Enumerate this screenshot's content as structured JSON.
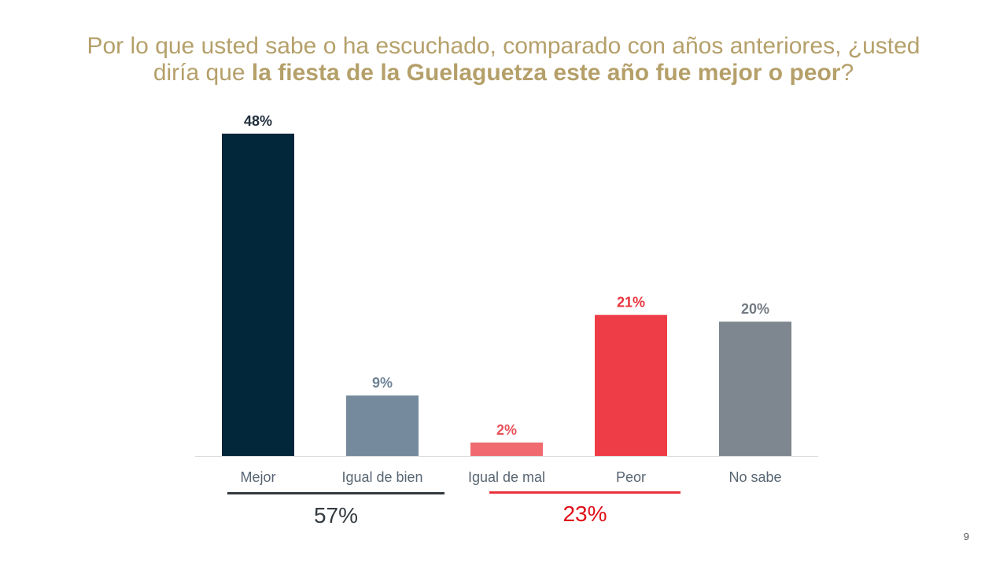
{
  "title": {
    "part1": "Por lo que usted sabe o ha escuchado, comparado con años anteriores, ¿usted",
    "part2": "diría que ",
    "bold": "la fiesta de la Guelaguetza este año fue mejor o peor",
    "part3": "?"
  },
  "chart_data": {
    "type": "bar",
    "categories": [
      "Mejor",
      "Igual de bien",
      "Igual de mal",
      "Peor",
      "No sabe"
    ],
    "values": [
      48,
      9,
      2,
      21,
      20
    ],
    "value_labels": [
      "48%",
      "9%",
      "2%",
      "21%",
      "20%"
    ],
    "bar_colors": [
      "#02263a",
      "#758a9c",
      "#ef6b6f",
      "#ef3d47",
      "#7e878f"
    ],
    "label_colors": [
      "#1f2d3d",
      "#6e8396",
      "#e8525a",
      "#e8333d",
      "#737b84"
    ],
    "ylim": [
      0,
      50
    ],
    "grid": false,
    "groups": [
      {
        "categories": [
          "Mejor",
          "Igual de bien"
        ],
        "total": "57%",
        "color": "#333a40",
        "text_color": "#333a40"
      },
      {
        "categories": [
          "Igual de mal",
          "Peor"
        ],
        "total": "23%",
        "color": "#e8333d",
        "text_color": "#e00d17"
      }
    ]
  },
  "page_number": "9"
}
